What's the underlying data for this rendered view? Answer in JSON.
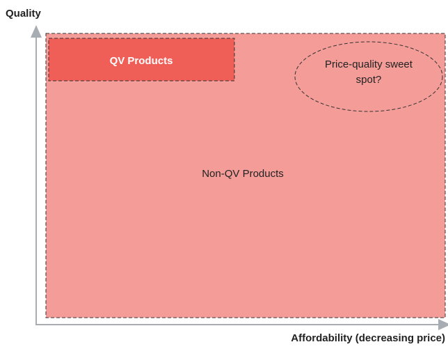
{
  "axes": {
    "y_label": "Quality",
    "x_label": "Affordability (decreasing price)"
  },
  "regions": {
    "outer": "Non-QV Products",
    "inner": "QV Products",
    "ellipse": "Price-quality sweet spot?"
  }
}
